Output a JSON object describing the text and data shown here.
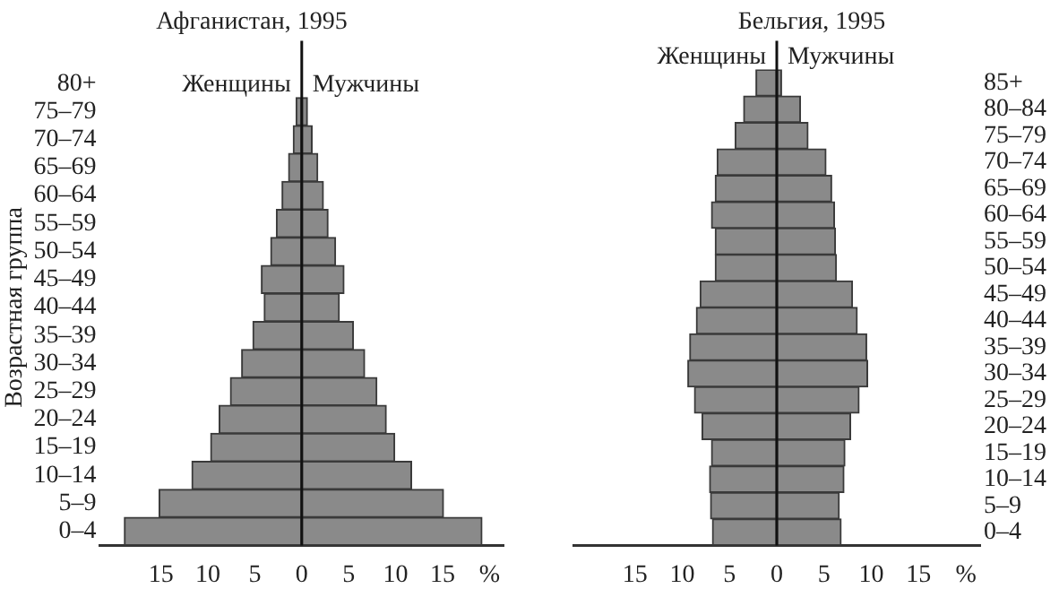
{
  "chart_data": [
    {
      "type": "bar",
      "title": "Афганистан, 1995",
      "ylabel": "Возрастная группа",
      "orientation": "horizontal",
      "stacked": true,
      "grid": false,
      "legend": false,
      "categories": [
        "80+",
        "75–79",
        "70–74",
        "65–69",
        "60–64",
        "55–59",
        "50–54",
        "45–49",
        "40–44",
        "35–39",
        "30–34",
        "25–29",
        "20–24",
        "15–19",
        "10–14",
        "5–9",
        "0–4"
      ],
      "series": [
        {
          "name": "Женщины",
          "color": "#8a8a8a",
          "values": [
            0,
            -0.6,
            -0.9,
            -1.4,
            -2.1,
            -2.7,
            -3.3,
            -4.3,
            -4.0,
            -5.2,
            -6.4,
            -7.6,
            -8.8,
            -9.7,
            -11.7,
            -15.2,
            -18.9
          ]
        },
        {
          "name": "Мужчины",
          "color": "#8a8a8a",
          "values": [
            0,
            0.6,
            1.1,
            1.7,
            2.3,
            2.8,
            3.6,
            4.5,
            4.0,
            5.5,
            6.7,
            8.0,
            9.0,
            9.9,
            11.7,
            15.1,
            19.2
          ]
        }
      ],
      "ref_lines": [
        {
          "axis": "x",
          "value": 0
        }
      ],
      "xlim": [
        -21.5,
        21.5
      ],
      "xticks": [
        {
          "value": -15,
          "label": "15"
        },
        {
          "value": -10,
          "label": "10"
        },
        {
          "value": -5,
          "label": "5"
        },
        0,
        5,
        10,
        15,
        {
          "value": 20,
          "label": "%"
        }
      ]
    },
    {
      "type": "bar",
      "title": "Бельгия, 1995",
      "orientation": "horizontal",
      "stacked": true,
      "grid": false,
      "legend": false,
      "categories": [
        "85+",
        "80–84",
        "75–79",
        "70–74",
        "65–69",
        "60–64",
        "55–59",
        "50–54",
        "45–49",
        "40–44",
        "35–39",
        "30–34",
        "25–29",
        "20–24",
        "15–19",
        "10–14",
        "5–9",
        "0–4"
      ],
      "series": [
        {
          "name": "Женщины",
          "color": "#8a8a8a",
          "values": [
            -2.2,
            -3.5,
            -4.4,
            -6.3,
            -6.5,
            -6.9,
            -6.5,
            -6.5,
            -8.1,
            -8.5,
            -9.2,
            -9.4,
            -8.7,
            -7.9,
            -6.9,
            -7.1,
            -7.0,
            -6.8
          ]
        },
        {
          "name": "Мужчины",
          "color": "#8a8a8a",
          "values": [
            0.5,
            2.5,
            3.3,
            5.2,
            5.8,
            6.1,
            6.2,
            6.3,
            8.0,
            8.5,
            9.5,
            9.6,
            8.7,
            7.8,
            7.2,
            7.1,
            6.6,
            6.8
          ]
        }
      ],
      "ref_lines": [
        {
          "axis": "x",
          "value": 0
        }
      ],
      "xlim": [
        -21.5,
        21.5
      ],
      "xticks": [
        {
          "value": -15,
          "label": "15"
        },
        {
          "value": -10,
          "label": "10"
        },
        {
          "value": -5,
          "label": "5"
        },
        0,
        5,
        10,
        15,
        {
          "value": 20,
          "label": "%"
        }
      ]
    }
  ]
}
